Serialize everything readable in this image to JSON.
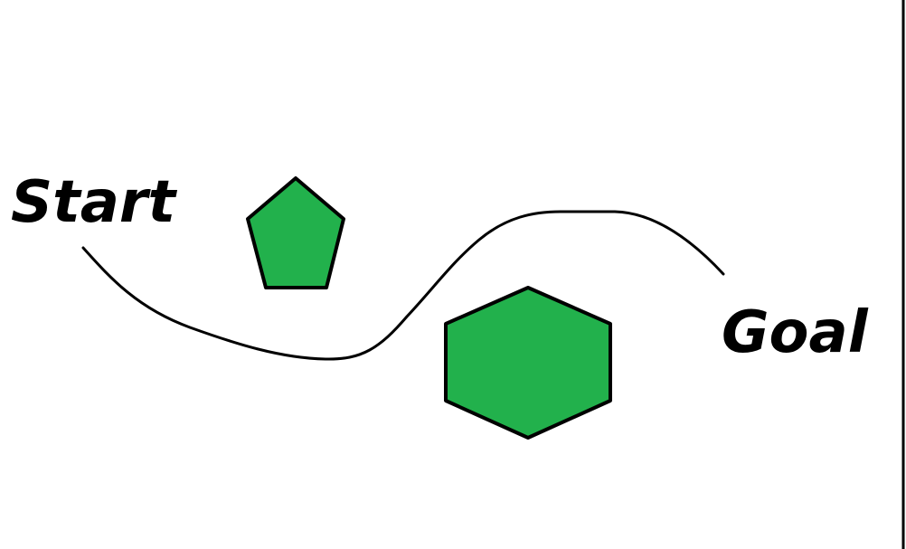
{
  "diagram": {
    "start_label": "Start",
    "goal_label": "Goal",
    "obstacles": [
      {
        "shape": "pentagon",
        "fill": "#22b14c"
      },
      {
        "shape": "hexagon",
        "fill": "#22b14c"
      }
    ],
    "path": {
      "stroke": "#000000"
    },
    "border_color": "#000000"
  }
}
